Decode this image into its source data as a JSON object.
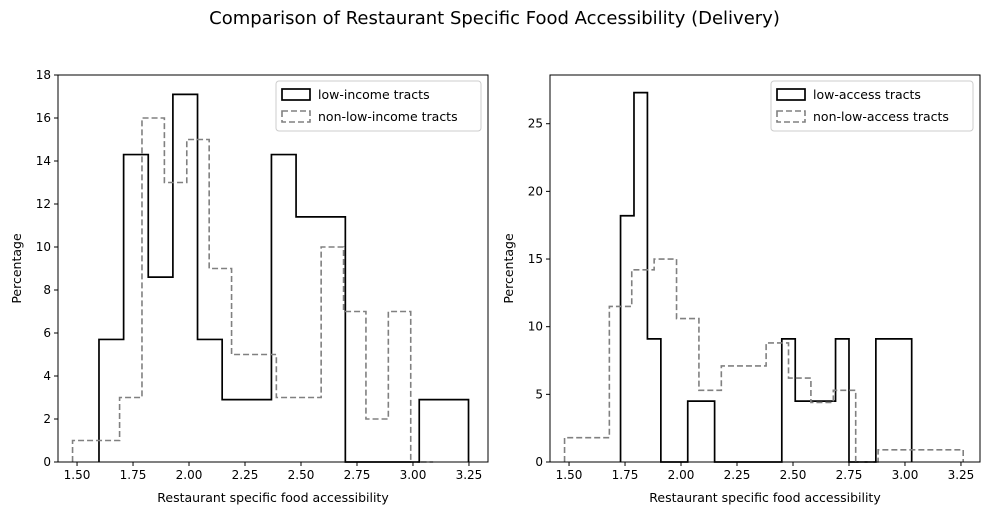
{
  "figure": {
    "suptitle": "Comparison of Restaurant Specific Food Accessibility (Delivery)"
  },
  "chart_data": [
    {
      "type": "histogram-step",
      "xlabel": "Restaurant specific food accessibility",
      "ylabel": "Percentage",
      "xlim": [
        1.415,
        3.335
      ],
      "ylim": [
        0,
        18
      ],
      "xticks": [
        "1.50",
        "1.75",
        "2.00",
        "2.25",
        "2.50",
        "2.75",
        "3.00",
        "3.25"
      ],
      "xtick_values": [
        1.5,
        1.75,
        2.0,
        2.25,
        2.5,
        2.75,
        3.0,
        3.25
      ],
      "yticks": [
        "0",
        "2",
        "4",
        "6",
        "8",
        "10",
        "12",
        "14",
        "16",
        "18"
      ],
      "ytick_values": [
        0,
        2,
        4,
        6,
        8,
        10,
        12,
        14,
        16,
        18
      ],
      "legend_position": "upper right",
      "series": [
        {
          "name": "low-income tracts",
          "color": "#000000",
          "style": "solid",
          "edges": [
            1.598,
            1.708,
            1.818,
            1.928,
            2.038,
            2.148,
            2.258,
            2.368,
            2.478,
            2.588,
            2.698,
            2.808,
            2.918,
            3.028,
            3.138,
            3.248
          ],
          "values": [
            5.7,
            14.3,
            8.6,
            17.1,
            5.7,
            2.9,
            2.9,
            14.3,
            11.4,
            11.4,
            0,
            0,
            0,
            2.9,
            2.9
          ]
        },
        {
          "name": "non-low-income tracts",
          "color": "#808080",
          "style": "dashed",
          "edges": [
            1.48,
            1.59,
            1.69,
            1.79,
            1.89,
            1.99,
            2.09,
            2.19,
            2.29,
            2.39,
            2.49,
            2.59,
            2.69,
            2.79,
            2.89,
            2.99,
            3.09
          ],
          "values": [
            1,
            1,
            3,
            16,
            13,
            15,
            9,
            5,
            5,
            3,
            3,
            10,
            7,
            2,
            7,
            0
          ]
        }
      ]
    },
    {
      "type": "histogram-step",
      "xlabel": "Restaurant specific food accessibility",
      "ylabel": "Percentage",
      "xlim": [
        1.415,
        3.335
      ],
      "ylim": [
        0,
        28.6
      ],
      "xticks": [
        "1.50",
        "1.75",
        "2.00",
        "2.25",
        "2.50",
        "2.75",
        "3.00",
        "3.25"
      ],
      "xtick_values": [
        1.5,
        1.75,
        2.0,
        2.25,
        2.5,
        2.75,
        3.0,
        3.25
      ],
      "yticks": [
        "0",
        "5",
        "10",
        "15",
        "20",
        "25"
      ],
      "ytick_values": [
        0,
        5,
        10,
        15,
        20,
        25
      ],
      "legend_position": "upper right",
      "series": [
        {
          "name": "low-access tracts",
          "color": "#000000",
          "style": "solid",
          "edges": [
            1.73,
            1.79,
            1.85,
            1.91,
            1.97,
            2.03,
            2.09,
            2.15,
            2.21,
            2.27,
            2.33,
            2.39,
            2.45,
            2.51,
            2.57,
            2.63,
            2.69,
            2.75,
            2.81,
            2.87,
            2.93,
            2.99,
            3.03
          ],
          "values": [
            18.2,
            27.3,
            9.1,
            0,
            0,
            4.5,
            4.5,
            0,
            0,
            0,
            0,
            0,
            9.1,
            4.5,
            4.5,
            4.5,
            9.1,
            0,
            0,
            9.1,
            9.1,
            9.1
          ]
        },
        {
          "name": "non-low-access tracts",
          "color": "#808080",
          "style": "dashed",
          "edges": [
            1.48,
            1.58,
            1.68,
            1.78,
            1.88,
            1.98,
            2.08,
            2.18,
            2.28,
            2.38,
            2.48,
            2.58,
            2.68,
            2.78,
            2.88,
            2.98,
            3.08,
            3.18,
            3.26
          ],
          "values": [
            1.8,
            1.8,
            11.5,
            14.2,
            15.0,
            10.6,
            5.3,
            7.1,
            7.1,
            8.8,
            6.2,
            4.4,
            5.3,
            0,
            0.9,
            0.9,
            0.9,
            0.9
          ]
        }
      ]
    }
  ]
}
